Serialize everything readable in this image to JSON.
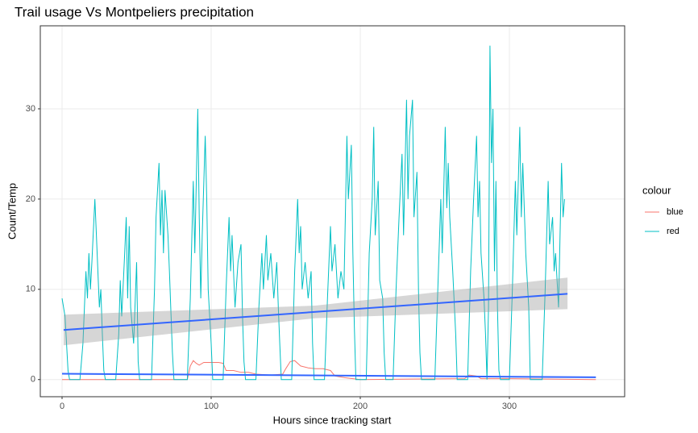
{
  "chart_data": {
    "type": "line",
    "title": "Trail usage Vs Montpeliers precipitation",
    "x_label": "Hours since tracking start",
    "y_label": "Count/Temp",
    "legend_title": "colour",
    "xlim": [
      -14.6,
      377.3
    ],
    "ylim": [
      -1.9,
      39.2
    ],
    "xticks": [
      0,
      100,
      200,
      300
    ],
    "yticks": [
      0,
      10,
      20,
      30
    ],
    "grid": true,
    "series": [
      {
        "name": "blue",
        "color": "#F8766D",
        "x": [
          0,
          84,
          86,
          88,
          90,
          92,
          95,
          100,
          105,
          108,
          110,
          115,
          120,
          125,
          130,
          140,
          148,
          150,
          153,
          156,
          160,
          165,
          170,
          175,
          180,
          183,
          190,
          200,
          270,
          273,
          278,
          281,
          300,
          358
        ],
        "values": [
          0,
          0,
          1.5,
          2.1,
          1.8,
          1.6,
          1.9,
          1.9,
          1.9,
          1.8,
          1.0,
          1.0,
          0.8,
          0.8,
          0.6,
          0.5,
          0.6,
          1.2,
          2.0,
          2.1,
          1.5,
          1.3,
          1.2,
          1.2,
          1.0,
          0.4,
          0.2,
          0,
          0.1,
          0.5,
          0.4,
          0.1,
          0.1,
          0
        ]
      },
      {
        "name": "red",
        "color": "#00BFC4",
        "x": [
          0,
          2,
          4,
          5,
          12,
          14,
          16,
          17,
          18,
          19,
          20,
          22,
          23,
          25,
          26,
          27,
          28,
          29,
          36,
          38,
          39,
          40,
          42,
          43,
          44,
          45,
          46,
          48,
          50,
          51,
          52,
          60,
          62,
          63,
          65,
          66,
          67,
          68,
          69,
          71,
          72,
          74,
          75,
          84,
          86,
          88,
          89,
          91,
          92,
          93,
          94,
          96,
          97,
          98,
          100,
          101,
          108,
          110,
          112,
          113,
          114,
          116,
          118,
          120,
          121,
          122,
          123,
          130,
          132,
          134,
          135,
          137,
          138,
          140,
          142,
          144,
          145,
          146,
          147,
          154,
          156,
          158,
          159,
          160,
          161,
          163,
          165,
          167,
          168,
          169,
          176,
          178,
          180,
          181,
          183,
          185,
          187,
          189,
          191,
          192,
          194,
          195,
          196,
          197,
          204,
          206,
          208,
          209,
          210,
          212,
          213,
          215,
          216,
          217,
          222,
          224,
          226,
          228,
          229,
          231,
          232,
          233,
          235,
          236,
          238,
          239,
          240,
          241,
          250,
          252,
          254,
          255,
          257,
          258,
          259,
          260,
          262,
          264,
          265,
          272,
          274,
          276,
          278,
          279,
          280,
          281,
          283,
          284,
          285,
          286,
          287,
          288,
          289,
          290,
          291,
          292,
          293,
          294,
          300,
          302,
          304,
          305,
          307,
          308,
          309,
          311,
          313,
          314,
          322,
          324,
          326,
          327,
          329,
          330,
          331,
          333,
          335,
          336,
          337
        ],
        "values": [
          9,
          7,
          1,
          0,
          0,
          4,
          12,
          9,
          14,
          10,
          13,
          20,
          16,
          8,
          10,
          5,
          1,
          0,
          0,
          5,
          11,
          7,
          14,
          18,
          9,
          17,
          8,
          4,
          13,
          2,
          0,
          0,
          10,
          18,
          24,
          16,
          21,
          14,
          21,
          16,
          12,
          3,
          0,
          0,
          9,
          22,
          14,
          30,
          18,
          9,
          16,
          27,
          20,
          10,
          4,
          0,
          0,
          10,
          18,
          12,
          16,
          8,
          13,
          15,
          7,
          2,
          0,
          0,
          8,
          14,
          10,
          16,
          11,
          14,
          9,
          13,
          8,
          4,
          0,
          0,
          12,
          20,
          14,
          17,
          10,
          13,
          9,
          12,
          4,
          0,
          0,
          9,
          17,
          12,
          15,
          9,
          12,
          10,
          27,
          20,
          26,
          14,
          6,
          0,
          0,
          14,
          20,
          28,
          16,
          22,
          11,
          9,
          3,
          0,
          0,
          10,
          18,
          25,
          16,
          31,
          20,
          27,
          31,
          18,
          23,
          10,
          3,
          0,
          0,
          10,
          20,
          14,
          28,
          19,
          24,
          18,
          12,
          5,
          0,
          0,
          12,
          20,
          27,
          18,
          22,
          14,
          9,
          5,
          0,
          8,
          37,
          24,
          30,
          12,
          22,
          8,
          1,
          0,
          0,
          10,
          22,
          16,
          28,
          18,
          24,
          14,
          8,
          0,
          0,
          10,
          22,
          15,
          18,
          12,
          14,
          8,
          24,
          18,
          20
        ]
      }
    ],
    "smooth": [
      {
        "color": "#3366FF",
        "band_color": "#999999",
        "x": [
          1,
          170,
          339
        ],
        "values": [
          5.5,
          7.5,
          9.5
        ],
        "lower": [
          3.8,
          6.8,
          7.8
        ],
        "upper": [
          7.2,
          8.2,
          11.3
        ]
      },
      {
        "color": "#3366FF",
        "x": [
          0,
          358
        ],
        "values": [
          0.65,
          0.25
        ]
      }
    ]
  }
}
